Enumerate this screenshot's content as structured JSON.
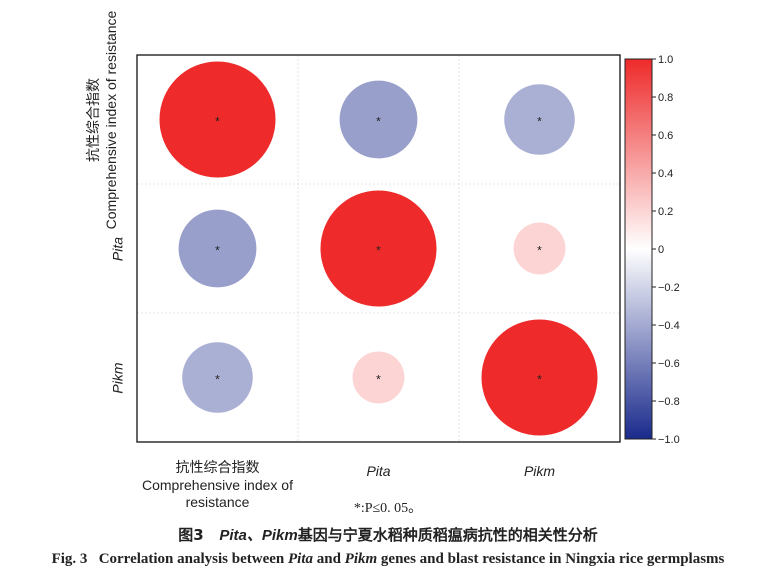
{
  "chart_data": {
    "type": "heatmap",
    "rows": [
      {
        "label_cn": "抗性综合指数",
        "label_en": "Comprehensive index of resistance",
        "italic": false
      },
      {
        "label_cn": "",
        "label_en": "Pita",
        "italic": true
      },
      {
        "label_cn": "",
        "label_en": "Pikm",
        "italic": true
      }
    ],
    "columns": [
      {
        "label_cn": "抗性综合指数",
        "label_en": "Comprehensive index of resistance",
        "italic": false
      },
      {
        "label_cn": "",
        "label_en": "Pita",
        "italic": true
      },
      {
        "label_cn": "",
        "label_en": "Pikm",
        "italic": true
      }
    ],
    "matrix": [
      [
        1.0,
        -0.45,
        -0.37
      ],
      [
        -0.45,
        1.0,
        0.2
      ],
      [
        -0.37,
        0.2,
        1.0
      ]
    ],
    "significant": [
      [
        true,
        true,
        true
      ],
      [
        true,
        true,
        true
      ],
      [
        true,
        true,
        true
      ]
    ],
    "significance_mark": "*",
    "colorbar": {
      "min": -1.0,
      "max": 1.0,
      "ticks": [
        1.0,
        0.8,
        0.6,
        0.4,
        0.2,
        0,
        -0.2,
        -0.4,
        -0.6,
        -0.8,
        -1.0
      ],
      "tick_labels": [
        "1.0",
        "0.8",
        "0.6",
        "0.4",
        "0.2",
        "0",
        "−0.2",
        "−0.4",
        "−0.6",
        "−0.8",
        "−1.0"
      ],
      "colors": {
        "negative": "#1a2a8c",
        "zero": "#ffffff",
        "positive": "#ee2a2a"
      }
    },
    "grid": true
  },
  "note": "*:P≤0. 05。",
  "caption": {
    "cn_prefix": "图3",
    "cn_italic": "Pita、Pikm",
    "cn_rest": "基因与宁夏水稻种质稻瘟病抗性的相关性分析",
    "en_prefix": "Fig. 3",
    "en_parts": [
      {
        "text": "Correlation analysis between ",
        "italic": false
      },
      {
        "text": "Pita",
        "italic": true
      },
      {
        "text": " and ",
        "italic": false
      },
      {
        "text": "Pikm",
        "italic": true
      },
      {
        "text": " genes and blast resistance in Ningxia rice germplasms",
        "italic": false
      }
    ]
  }
}
